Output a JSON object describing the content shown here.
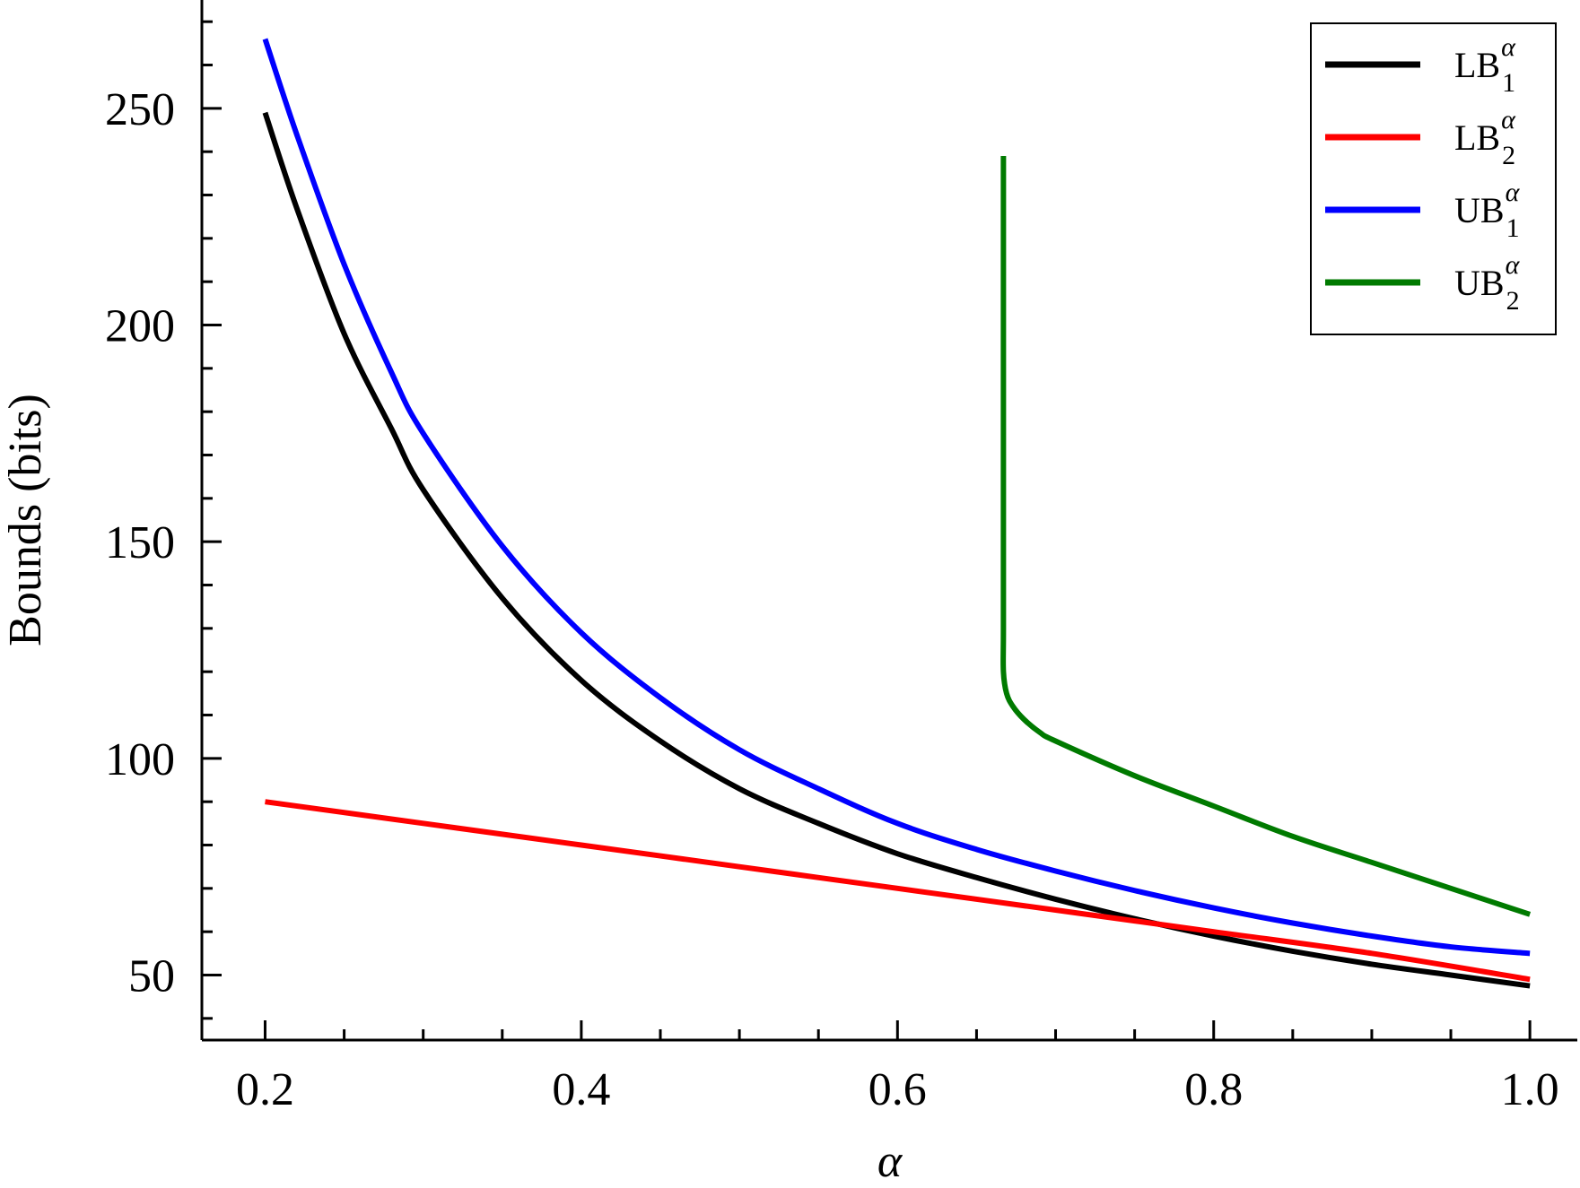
{
  "chart_data": {
    "type": "line",
    "title": "",
    "xlabel": "α",
    "ylabel": "Bounds (bits)",
    "xlim": [
      0.16,
      1.03
    ],
    "ylim": [
      35,
      275
    ],
    "xticks": [
      0.2,
      0.4,
      0.6,
      0.8,
      1.0
    ],
    "xtick_labels": [
      "0.2",
      "0.4",
      "0.6",
      "0.8",
      "1.0"
    ],
    "yticks": [
      50,
      100,
      150,
      200,
      250
    ],
    "ytick_labels": [
      "50",
      "100",
      "150",
      "200",
      "250"
    ],
    "x_minor_step": 0.05,
    "y_minor_step": 10,
    "grid": false,
    "legend_position": "top-right",
    "series": [
      {
        "name": "LB",
        "sub": "1",
        "sup": "α",
        "color": "#000000",
        "points": [
          [
            0.2,
            249
          ],
          [
            0.22,
            227
          ],
          [
            0.25,
            198
          ],
          [
            0.28,
            176
          ],
          [
            0.3,
            162
          ],
          [
            0.35,
            137
          ],
          [
            0.4,
            118
          ],
          [
            0.45,
            104
          ],
          [
            0.5,
            93
          ],
          [
            0.55,
            85
          ],
          [
            0.6,
            78
          ],
          [
            0.65,
            72.5
          ],
          [
            0.7,
            67.5
          ],
          [
            0.75,
            63
          ],
          [
            0.8,
            59
          ],
          [
            0.85,
            55.5
          ],
          [
            0.9,
            52.5
          ],
          [
            0.95,
            50
          ],
          [
            1.0,
            47.5
          ]
        ]
      },
      {
        "name": "LB",
        "sub": "2",
        "sup": "α",
        "color": "#ff0000",
        "points": [
          [
            0.2,
            90
          ],
          [
            0.3,
            85
          ],
          [
            0.4,
            80
          ],
          [
            0.5,
            75
          ],
          [
            0.6,
            70
          ],
          [
            0.7,
            65
          ],
          [
            0.8,
            60
          ],
          [
            0.9,
            55
          ],
          [
            1.0,
            49
          ]
        ]
      },
      {
        "name": "UB",
        "sub": "1",
        "sup": "α",
        "color": "#0000ff",
        "points": [
          [
            0.2,
            266
          ],
          [
            0.22,
            244
          ],
          [
            0.25,
            214
          ],
          [
            0.28,
            189
          ],
          [
            0.3,
            175
          ],
          [
            0.35,
            149
          ],
          [
            0.4,
            129
          ],
          [
            0.45,
            114
          ],
          [
            0.5,
            102
          ],
          [
            0.55,
            93
          ],
          [
            0.6,
            85
          ],
          [
            0.65,
            79
          ],
          [
            0.7,
            74
          ],
          [
            0.75,
            69.5
          ],
          [
            0.8,
            65.5
          ],
          [
            0.85,
            62
          ],
          [
            0.9,
            59
          ],
          [
            0.95,
            56.5
          ],
          [
            1.0,
            55
          ]
        ]
      },
      {
        "name": "UB",
        "sub": "2",
        "sup": "α",
        "color": "#007a00",
        "points": [
          [
            0.667,
            239
          ],
          [
            0.667,
            200
          ],
          [
            0.667,
            160
          ],
          [
            0.667,
            130
          ],
          [
            0.667,
            120
          ],
          [
            0.669,
            115
          ],
          [
            0.673,
            112
          ],
          [
            0.68,
            109
          ],
          [
            0.69,
            106
          ],
          [
            0.7,
            104
          ],
          [
            0.75,
            96
          ],
          [
            0.8,
            89
          ],
          [
            0.85,
            82
          ],
          [
            0.9,
            76
          ],
          [
            0.95,
            70
          ],
          [
            1.0,
            64
          ]
        ]
      }
    ]
  }
}
